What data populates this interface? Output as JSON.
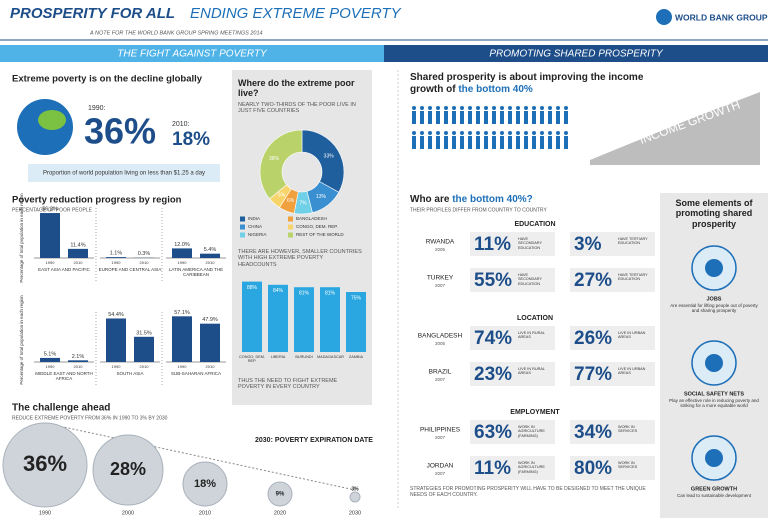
{
  "header": {
    "title": "PROSPERITY FOR ALL",
    "title_rest": "ENDING EXTREME POVERTY",
    "subtitle": "A NOTE FOR THE WORLD BANK GROUP SPRING MEETINGS 2014",
    "logo": "WORLD BANK GROUP"
  },
  "sections": {
    "left": "THE FIGHT AGAINST POVERTY",
    "right": "PROMOTING SHARED PROSPERITY"
  },
  "decline": {
    "heading": "Extreme poverty is on the decline globally",
    "year1": "1990:",
    "value1": "36%",
    "year2": "2010:",
    "value2": "18%",
    "note": "Proportion of world population living on less than $1.25 a day"
  },
  "regions": {
    "heading": "Poverty reduction progress by region",
    "subheading": "PERCENTAGE OF POOR PEOPLE",
    "axis_label": "Percentage of total population in each region",
    "type": "bar",
    "color": "#1d4e8a",
    "years": [
      "1990",
      "2010"
    ],
    "groups": [
      {
        "name": "EAST ASIA AND PACIFIC",
        "values": [
          56.2,
          11.4
        ],
        "value_labels": [
          "56.2%",
          "11.4%"
        ]
      },
      {
        "name": "EUROPE AND CENTRAL ASIA",
        "values": [
          1.1,
          0.3
        ],
        "value_labels": [
          "1.1%",
          "0.3%"
        ]
      },
      {
        "name": "LATIN AMERICA AND THE CARIBBEAN",
        "values": [
          12.0,
          5.4
        ],
        "value_labels": [
          "12.0%",
          "5.4%"
        ]
      },
      {
        "name": "MIDDLE EAST AND NORTH AFRICA",
        "values": [
          5.1,
          2.1
        ],
        "value_labels": [
          "5.1%",
          "2.1%"
        ]
      },
      {
        "name": "SOUTH ASIA",
        "values": [
          54.4,
          31.5
        ],
        "value_labels": [
          "54.4%",
          "31.5%"
        ]
      },
      {
        "name": "SUB-SAHARAN AFRICA",
        "values": [
          57.1,
          47.9
        ],
        "value_labels": [
          "57.1%",
          "47.9%"
        ]
      }
    ]
  },
  "poor_live": {
    "heading": "Where do the extreme poor live?",
    "subheading": "NEARLY TWO-THIRDS OF THE POOR LIVE IN JUST FIVE COUNTRIES",
    "type": "pie",
    "slices": [
      {
        "name": "INDIA",
        "value": 33,
        "label": "33%",
        "color": "#1f5f9e"
      },
      {
        "name": "CHINA",
        "value": 13,
        "label": "13%",
        "color": "#3a8fd0"
      },
      {
        "name": "NIGERIA",
        "value": 7,
        "label": "7%",
        "color": "#6fd0e8"
      },
      {
        "name": "BANGLADESH",
        "value": 6,
        "label": "6%",
        "color": "#f0a03c"
      },
      {
        "name": "CONGO, DEM. REP.",
        "value": 5,
        "label": "5%",
        "color": "#f6d46a"
      },
      {
        "name": "REST OF THE WORLD",
        "value": 36,
        "label": "36%",
        "color": "#b9d36a"
      }
    ]
  },
  "smaller": {
    "text": "THERE ARE HOWEVER, SMALLER COUNTRIES WITH HIGH EXTREME POVERTY HEADCOUNTS",
    "type": "bar",
    "color": "#2aa7e0",
    "categories": [
      "CONGO, DEM. REP.",
      "LIBERIA",
      "BURUNDI",
      "MADAGASCAR",
      "ZAMBIA"
    ],
    "values": [
      88,
      84,
      81,
      81,
      75
    ],
    "value_labels": [
      "88%",
      "84%",
      "81%",
      "81%",
      "75%"
    ],
    "footer": "THUS THE NEED TO FIGHT EXTREME POVERTY IN EVERY COUNTRY"
  },
  "challenge": {
    "heading": "The challenge ahead",
    "subheading": "REDUCE EXTREME POVERTY FROM 36% IN 1990 TO 3% BY 2030",
    "callout": "2030: POVERTY EXPIRATION DATE",
    "milestones": [
      {
        "year": "1990",
        "value": "36%"
      },
      {
        "year": "2000",
        "value": "28%"
      },
      {
        "year": "2010",
        "value": "18%"
      },
      {
        "year": "2020",
        "value": "9%"
      },
      {
        "year": "2030",
        "value": "3%"
      }
    ]
  },
  "shared": {
    "heading": "Shared prosperity is about improving the income growth of",
    "highlight": "the bottom 40%",
    "slope_label": "INCOME GROWTH"
  },
  "bottom40": {
    "heading": "Who are",
    "highlight": "the bottom 40%?",
    "subheading": "THEIR PROFILES DIFFER FROM COUNTRY TO COUNTRY",
    "groups": [
      {
        "title": "EDUCATION",
        "rows": [
          {
            "country": "RWANDA",
            "year": "2005",
            "stats": [
              {
                "value": "11%",
                "label": "HAVE SECONDARY EDUCATION"
              },
              {
                "value": "3%",
                "label": "HAVE TERTIARY EDUCATION"
              }
            ]
          },
          {
            "country": "TURKEY",
            "year": "2007",
            "stats": [
              {
                "value": "55%",
                "label": "HAVE SECONDARY EDUCATION"
              },
              {
                "value": "27%",
                "label": "HAVE TERTIARY EDUCATION"
              }
            ]
          }
        ]
      },
      {
        "title": "LOCATION",
        "rows": [
          {
            "country": "BANGLADESH",
            "year": "2005",
            "stats": [
              {
                "value": "74%",
                "label": "LIVE IN RURAL AREAS"
              },
              {
                "value": "26%",
                "label": "LIVE IN URBAN AREAS"
              }
            ]
          },
          {
            "country": "BRAZIL",
            "year": "2007",
            "stats": [
              {
                "value": "23%",
                "label": "LIVE IN RURAL AREAS"
              },
              {
                "value": "77%",
                "label": "LIVE IN URBAN AREAS"
              }
            ]
          }
        ]
      },
      {
        "title": "EMPLOYMENT",
        "rows": [
          {
            "country": "PHILIPPINES",
            "year": "2007",
            "stats": [
              {
                "value": "63%",
                "label": "WORK IN AGRICULTURE (FARMING)"
              },
              {
                "value": "34%",
                "label": "WORK IN SERVICES"
              }
            ]
          },
          {
            "country": "JORDAN",
            "year": "2007",
            "stats": [
              {
                "value": "11%",
                "label": "WORK IN AGRICULTURE (FARMING)"
              },
              {
                "value": "80%",
                "label": "WORK IN SERVICES"
              }
            ]
          }
        ]
      }
    ],
    "footer": "STRATEGIES FOR PROMOTING PROSPERITY WILL HAVE TO BE DESIGNED TO MEET THE UNIQUE NEEDS OF EACH COUNTRY."
  },
  "elements": {
    "heading": "Some elements of promoting shared prosperity",
    "items": [
      {
        "title": "JOBS",
        "text": "Are essential for lifting people out of poverty and sharing prosperity"
      },
      {
        "title": "SOCIAL SAFETY NETS",
        "text": "Play an effective role in reducing poverty and striking for a more equitable world"
      },
      {
        "title": "GREEN GROWTH",
        "text": "Can lead to sustainable development"
      }
    ]
  }
}
